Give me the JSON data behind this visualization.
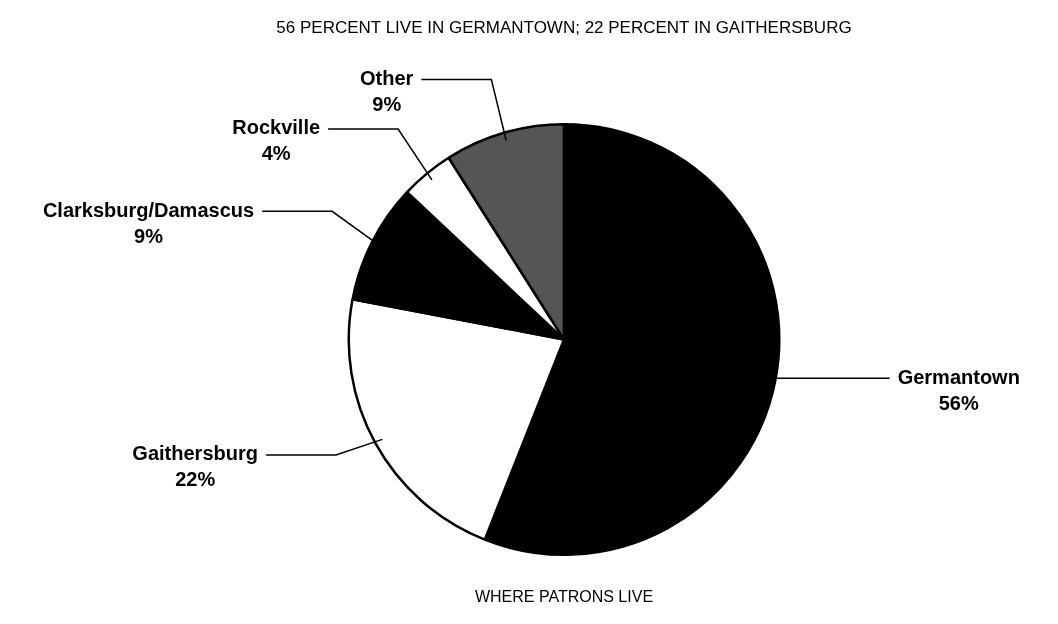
{
  "chart_data": {
    "type": "pie",
    "title": "56 PERCENT LIVE IN GERMANTOWN; 22 PERCENT IN GAITHERSBURG",
    "categories": [
      "Germantown",
      "Gaithersburg",
      "Clarksburg/Damascus",
      "Rockville",
      "Other"
    ],
    "values": [
      56,
      22,
      9,
      4,
      9
    ],
    "colors": [
      "#000000",
      "#ffffff",
      "#000000",
      "#ffffff",
      "#555555"
    ],
    "value_labels": [
      "56%",
      "22%",
      "9%",
      "4%",
      "9%"
    ],
    "annotations": [
      "WHERE PATRONS LIVE"
    ]
  }
}
